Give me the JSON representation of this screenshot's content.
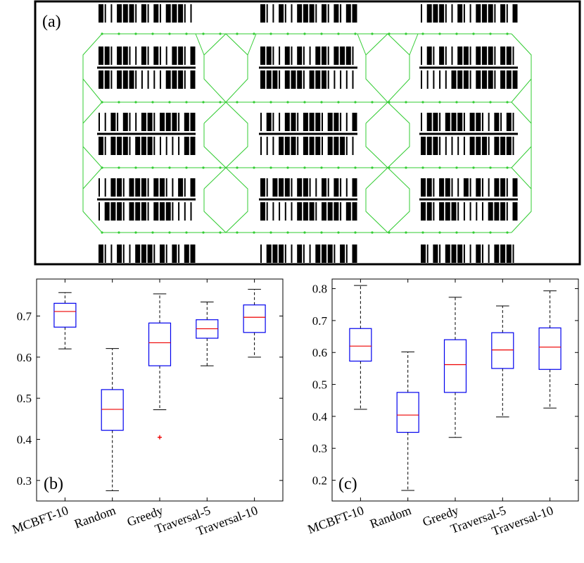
{
  "colors": {
    "box": "#0000ee",
    "median": "#ee0000",
    "whisker": "#000000",
    "outlier": "#ee0000",
    "corridor": "#33cc33",
    "shelf": "#000000"
  },
  "panel_a": {
    "label": "(a)"
  },
  "chart_data": [
    {
      "type": "boxplot",
      "panel_label": "(b)",
      "title": "",
      "xlabel": "",
      "ylabel": "",
      "categories": [
        "MCBFT-10",
        "Random",
        "Greedy",
        "Traversal-5",
        "Traversal-10"
      ],
      "ylim": [
        0.25,
        0.79
      ],
      "yticks": [
        0.3,
        0.4,
        0.5,
        0.6,
        0.7
      ],
      "ytick_labels": [
        "0.3",
        "0.4",
        "0.5",
        "0.6",
        "0.7"
      ],
      "boxes": [
        {
          "whisker_low": 0.62,
          "q1": 0.673,
          "median": 0.711,
          "q3": 0.731,
          "whisker_high": 0.757,
          "outliers": []
        },
        {
          "whisker_low": 0.275,
          "q1": 0.422,
          "median": 0.473,
          "q3": 0.521,
          "whisker_high": 0.621,
          "outliers": []
        },
        {
          "whisker_low": 0.472,
          "q1": 0.579,
          "median": 0.635,
          "q3": 0.683,
          "whisker_high": 0.754,
          "outliers": [
            0.405
          ]
        },
        {
          "whisker_low": 0.579,
          "q1": 0.646,
          "median": 0.669,
          "q3": 0.691,
          "whisker_high": 0.734,
          "outliers": []
        },
        {
          "whisker_low": 0.6,
          "q1": 0.66,
          "median": 0.697,
          "q3": 0.727,
          "whisker_high": 0.765,
          "outliers": []
        }
      ]
    },
    {
      "type": "boxplot",
      "panel_label": "(c)",
      "title": "",
      "xlabel": "",
      "ylabel": "",
      "categories": [
        "MCBFT-10",
        "Random",
        "Greedy",
        "Traversal-5",
        "Traversal-10"
      ],
      "ylim": [
        0.135,
        0.83
      ],
      "yticks": [
        0.2,
        0.3,
        0.4,
        0.5,
        0.6,
        0.7,
        0.8
      ],
      "ytick_labels": [
        "0.2",
        "0.3",
        "0.4",
        "0.5",
        "0.6",
        "0.7",
        "0.8"
      ],
      "boxes": [
        {
          "whisker_low": 0.422,
          "q1": 0.573,
          "median": 0.62,
          "q3": 0.675,
          "whisker_high": 0.81,
          "outliers": []
        },
        {
          "whisker_low": 0.168,
          "q1": 0.35,
          "median": 0.404,
          "q3": 0.475,
          "whisker_high": 0.602,
          "outliers": []
        },
        {
          "whisker_low": 0.334,
          "q1": 0.475,
          "median": 0.562,
          "q3": 0.64,
          "whisker_high": 0.773,
          "outliers": []
        },
        {
          "whisker_low": 0.398,
          "q1": 0.55,
          "median": 0.608,
          "q3": 0.662,
          "whisker_high": 0.746,
          "outliers": []
        },
        {
          "whisker_low": 0.426,
          "q1": 0.547,
          "median": 0.617,
          "q3": 0.677,
          "whisker_high": 0.793,
          "outliers": []
        }
      ]
    }
  ]
}
